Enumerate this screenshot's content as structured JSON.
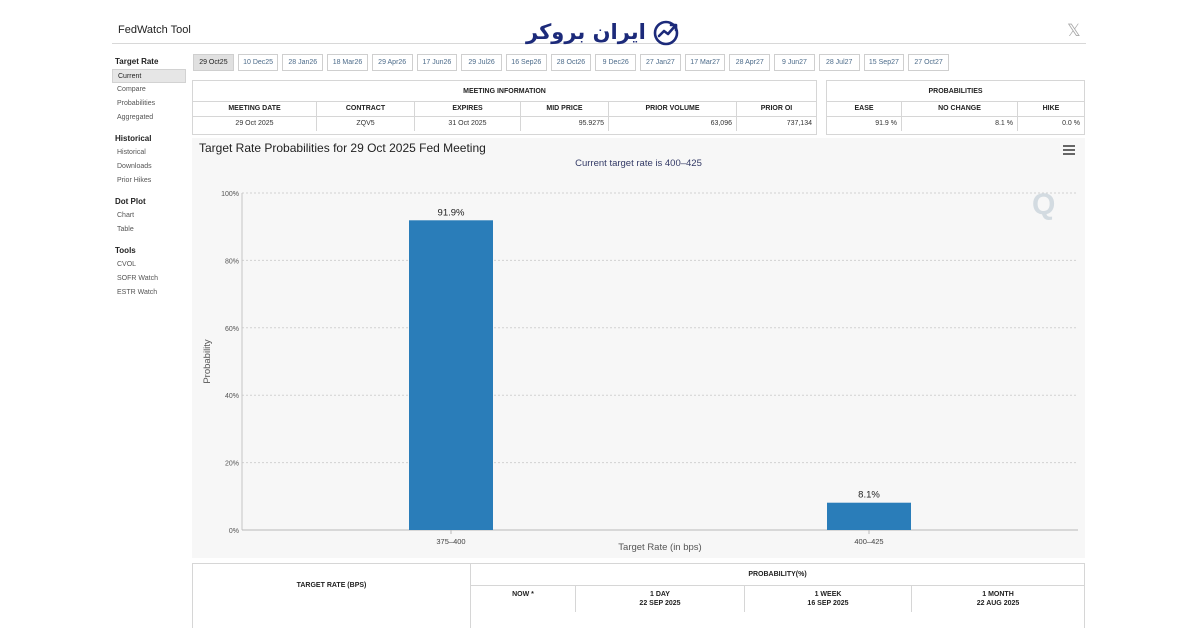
{
  "header": {
    "app_title": "FedWatch Tool",
    "logo_text": "ایران بروکر",
    "close_symbol": "𝕏"
  },
  "sidebar": {
    "groups": [
      {
        "title": "Target Rate",
        "items": [
          "Current",
          "Compare",
          "Probabilities",
          "Aggregated"
        ]
      },
      {
        "title": "Historical",
        "items": [
          "Historical",
          "Downloads",
          "Prior Hikes"
        ]
      },
      {
        "title": "Dot Plot",
        "items": [
          "Chart",
          "Table"
        ]
      },
      {
        "title": "Tools",
        "items": [
          "CVOL",
          "SOFR Watch",
          "ESTR Watch"
        ]
      }
    ],
    "active_item": "Current"
  },
  "meeting_tabs": [
    "29 Oct25",
    "10 Dec25",
    "28 Jan26",
    "18 Mar26",
    "29 Apr26",
    "17 Jun26",
    "29 Jul26",
    "16 Sep26",
    "28 Oct26",
    "9 Dec26",
    "27 Jan27",
    "17 Mar27",
    "28 Apr27",
    "9 Jun27",
    "28 Jul27",
    "15 Sep27",
    "27 Oct27"
  ],
  "active_tab": "29 Oct25",
  "meeting_info": {
    "title": "MEETING INFORMATION",
    "headers": [
      "MEETING DATE",
      "CONTRACT",
      "EXPIRES",
      "MID PRICE",
      "PRIOR VOLUME",
      "PRIOR OI"
    ],
    "row": [
      "29 Oct 2025",
      "ZQV5",
      "31 Oct 2025",
      "95.9275",
      "63,096",
      "737,134"
    ]
  },
  "probabilities": {
    "title": "PROBABILITIES",
    "headers": [
      "EASE",
      "NO CHANGE",
      "HIKE"
    ],
    "row": [
      "91.9 %",
      "8.1 %",
      "0.0 %"
    ]
  },
  "chart": {
    "menu_icon": "hamburger-icon",
    "watermark": "Q",
    "bar_color": "#2a7db9"
  },
  "chart_data": {
    "type": "bar",
    "title": "Target Rate Probabilities for 29 Oct 2025 Fed Meeting",
    "subtitle": "Current target rate is 400–425",
    "categories": [
      "375–400",
      "400–425"
    ],
    "values": [
      91.9,
      8.1
    ],
    "data_labels": [
      "91.9%",
      "8.1%"
    ],
    "xlabel": "Target Rate (in bps)",
    "ylabel": "Probability",
    "ylim": [
      0,
      100
    ],
    "yticks": [
      "0%",
      "20%",
      "40%",
      "60%",
      "80%",
      "100%"
    ],
    "grid": true
  },
  "bottom_table": {
    "left_header": "TARGET RATE (BPS)",
    "prob_header": "PROBABILITY(%)",
    "columns": [
      {
        "label": "NOW *",
        "date": ""
      },
      {
        "label": "1 DAY",
        "date": "22 SEP 2025"
      },
      {
        "label": "1 WEEK",
        "date": "16 SEP 2025"
      },
      {
        "label": "1 MONTH",
        "date": "22 AUG 2025"
      }
    ]
  }
}
